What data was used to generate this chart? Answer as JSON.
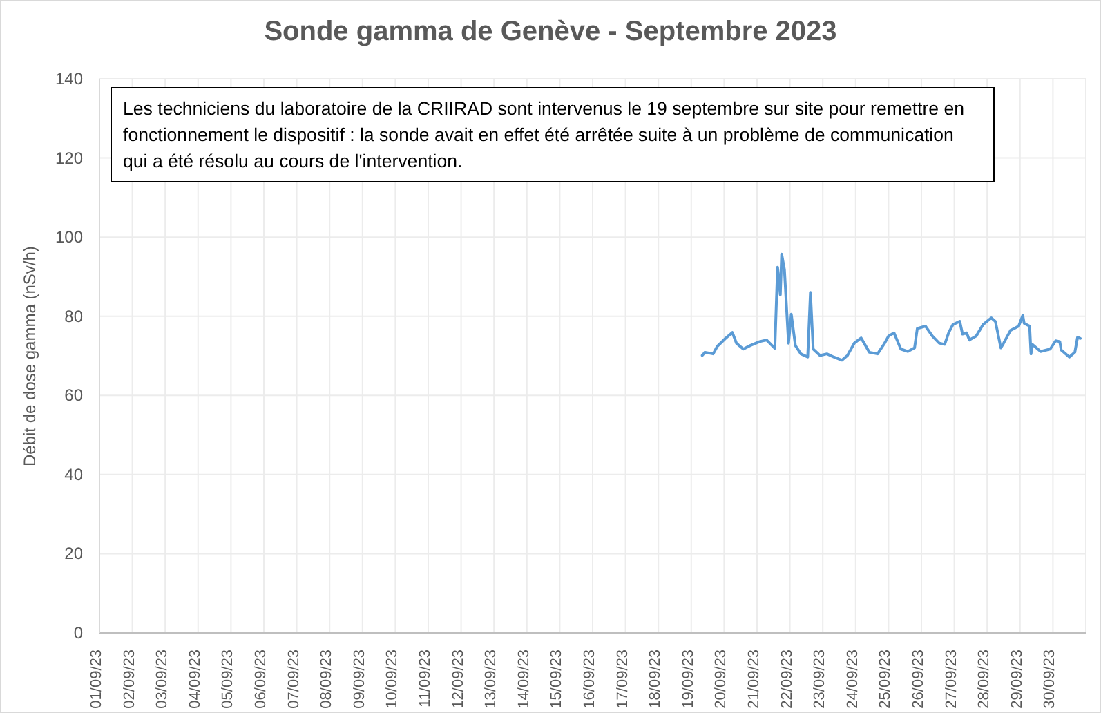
{
  "chart_data": {
    "type": "line",
    "title": "Sonde gamma de Genève - Septembre 2023",
    "ylabel": "Débit de dose gamma (nSv/h)",
    "annotations": [
      "Les techniciens du laboratoire de la CRIIRAD sont intervenus le 19 septembre sur site pour remettre en fonctionnement le dispositif : la sonde avait en effet été arrêtée suite à un problème de communication qui a été résolu au cours de l'intervention."
    ],
    "x": [
      "2023-09-19T08:00",
      "2023-09-19T10:00",
      "2023-09-19T16:00",
      "2023-09-19T19:00",
      "2023-09-20T01:00",
      "2023-09-20T06:00",
      "2023-09-20T09:00",
      "2023-09-20T14:00",
      "2023-09-20T19:00",
      "2023-09-21T02:00",
      "2023-09-21T07:00",
      "2023-09-21T13:00",
      "2023-09-21T15:00",
      "2023-09-21T17:00",
      "2023-09-21T18:00",
      "2023-09-21T20:00",
      "2023-09-21T23:00",
      "2023-09-22T01:00",
      "2023-09-22T04:00",
      "2023-09-22T08:00",
      "2023-09-22T13:00",
      "2023-09-22T15:00",
      "2023-09-22T17:00",
      "2023-09-22T22:00",
      "2023-09-23T03:00",
      "2023-09-23T08:00",
      "2023-09-23T14:00",
      "2023-09-23T18:00",
      "2023-09-23T23:00",
      "2023-09-24T04:00",
      "2023-09-24T10:00",
      "2023-09-24T16:00",
      "2023-09-24T21:00",
      "2023-09-25T00:00",
      "2023-09-25T04:00",
      "2023-09-25T09:00",
      "2023-09-25T14:00",
      "2023-09-25T19:00",
      "2023-09-25T21:00",
      "2023-09-26T03:00",
      "2023-09-26T08:00",
      "2023-09-26T13:00",
      "2023-09-26T17:00",
      "2023-09-26T20:00",
      "2023-09-26T23:00",
      "2023-09-27T04:00",
      "2023-09-27T06:00",
      "2023-09-27T09:00",
      "2023-09-27T11:00",
      "2023-09-27T16:00",
      "2023-09-27T21:00",
      "2023-09-28T03:00",
      "2023-09-28T06:00",
      "2023-09-28T10:00",
      "2023-09-28T12:00",
      "2023-09-28T17:00",
      "2023-09-28T23:00",
      "2023-09-29T02:00",
      "2023-09-29T03:00",
      "2023-09-29T07:00",
      "2023-09-29T08:00",
      "2023-09-29T09:00",
      "2023-09-29T15:00",
      "2023-09-29T22:00",
      "2023-09-30T02:00",
      "2023-09-30T05:00",
      "2023-09-30T06:00",
      "2023-09-30T12:00",
      "2023-09-30T16:00",
      "2023-09-30T18:00",
      "2023-09-30T20:00"
    ],
    "series": [
      {
        "color": "#5b9bd5",
        "values": [
          70.1,
          70.9,
          70.5,
          72.4,
          74.4,
          75.9,
          73.2,
          71.7,
          72.6,
          73.6,
          74.0,
          71.9,
          92.4,
          85.4,
          95.7,
          91.8,
          73.2,
          80.5,
          72.6,
          70.5,
          69.7,
          86.0,
          71.7,
          70.1,
          70.5,
          69.7,
          68.9,
          70.1,
          73.2,
          74.5,
          70.9,
          70.5,
          73.1,
          75.0,
          75.8,
          71.7,
          71.1,
          72.0,
          76.9,
          77.5,
          75.0,
          73.2,
          72.9,
          75.9,
          77.9,
          78.7,
          75.5,
          75.8,
          74.0,
          75.0,
          77.9,
          79.6,
          78.7,
          72.0,
          73.2,
          76.4,
          77.5,
          80.2,
          78.2,
          77.5,
          70.5,
          72.9,
          71.1,
          71.7,
          73.8,
          73.6,
          71.5,
          69.7,
          70.9,
          74.7,
          74.4
        ]
      }
    ],
    "xlim": [
      "2023-09-01",
      "2023-10-01"
    ],
    "xticks": [
      {
        "value": "2023-09-01",
        "label": "01/09/23"
      },
      {
        "value": "2023-09-02",
        "label": "02/09/23"
      },
      {
        "value": "2023-09-03",
        "label": "03/09/23"
      },
      {
        "value": "2023-09-04",
        "label": "04/09/23"
      },
      {
        "value": "2023-09-05",
        "label": "05/09/23"
      },
      {
        "value": "2023-09-06",
        "label": "06/09/23"
      },
      {
        "value": "2023-09-07",
        "label": "07/09/23"
      },
      {
        "value": "2023-09-08",
        "label": "08/09/23"
      },
      {
        "value": "2023-09-09",
        "label": "09/09/23"
      },
      {
        "value": "2023-09-10",
        "label": "10/09/23"
      },
      {
        "value": "2023-09-11",
        "label": "11/09/23"
      },
      {
        "value": "2023-09-12",
        "label": "12/09/23"
      },
      {
        "value": "2023-09-13",
        "label": "13/09/23"
      },
      {
        "value": "2023-09-14",
        "label": "14/09/23"
      },
      {
        "value": "2023-09-15",
        "label": "15/09/23"
      },
      {
        "value": "2023-09-16",
        "label": "16/09/23"
      },
      {
        "value": "2023-09-17",
        "label": "17/09/23"
      },
      {
        "value": "2023-09-18",
        "label": "18/09/23"
      },
      {
        "value": "2023-09-19",
        "label": "19/09/23"
      },
      {
        "value": "2023-09-20",
        "label": "20/09/23"
      },
      {
        "value": "2023-09-21",
        "label": "21/09/23"
      },
      {
        "value": "2023-09-22",
        "label": "22/09/23"
      },
      {
        "value": "2023-09-23",
        "label": "23/09/23"
      },
      {
        "value": "2023-09-24",
        "label": "24/09/23"
      },
      {
        "value": "2023-09-25",
        "label": "25/09/23"
      },
      {
        "value": "2023-09-26",
        "label": "26/09/23"
      },
      {
        "value": "2023-09-27",
        "label": "27/09/23"
      },
      {
        "value": "2023-09-28",
        "label": "28/09/23"
      },
      {
        "value": "2023-09-29",
        "label": "29/09/23"
      },
      {
        "value": "2023-09-30",
        "label": "30/09/23"
      }
    ],
    "ylim": [
      0,
      140
    ],
    "yticks": [
      0,
      20,
      40,
      60,
      80,
      100,
      120,
      140
    ],
    "grid": true,
    "marker": "none",
    "line_style": "solid"
  }
}
